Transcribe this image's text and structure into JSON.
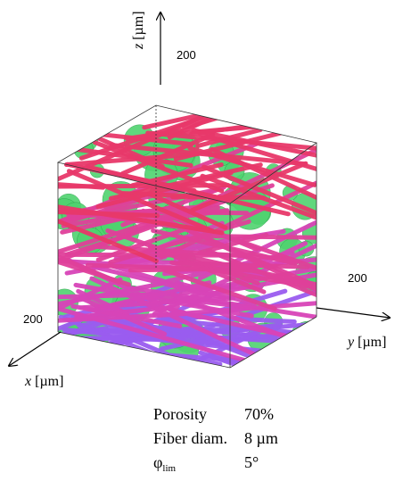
{
  "axes": {
    "z": {
      "symbol": "z",
      "unit": "[µm]",
      "tick": "200"
    },
    "y": {
      "symbol": "y",
      "unit": "[µm]",
      "tick": "200"
    },
    "x": {
      "symbol": "x",
      "unit": "[µm]",
      "tick": "200"
    }
  },
  "table": {
    "rows": [
      [
        "Porosity",
        "70%"
      ],
      [
        "Fiber diam.",
        "8 µm"
      ],
      [
        {
          "base": "φ",
          "sub": "lim"
        },
        "5°"
      ]
    ]
  }
}
